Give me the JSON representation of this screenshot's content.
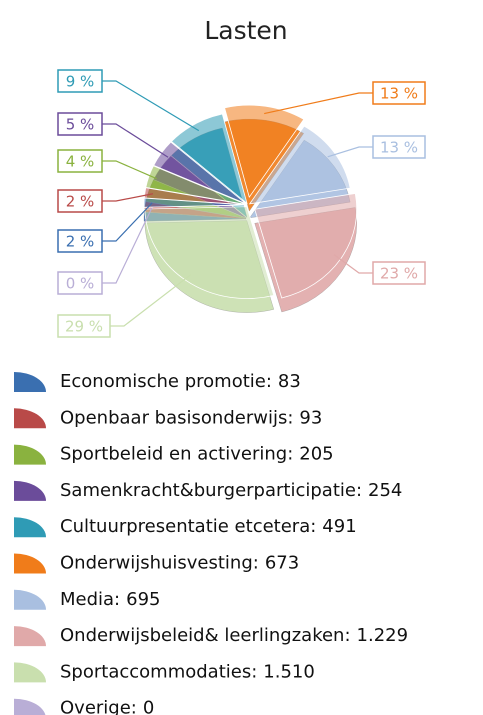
{
  "chart_data": {
    "type": "pie",
    "title": "Lasten",
    "categories": [
      "Economische promotie:",
      "Openbaar basisonderwijs:",
      "Sportbeleid en activering:",
      "Samenkracht&burgerparticipatie:",
      "Cultuurpresentatie etcetera:",
      "Onderwijshuisvesting:",
      "Media:",
      "Onderwijsbeleid& leerlingzaken:",
      "Sportaccommodaties:",
      "Overige:"
    ],
    "values": [
      83,
      93,
      205,
      254,
      491,
      673,
      695,
      1229,
      1510,
      0
    ],
    "value_labels": [
      "83",
      "93",
      "205",
      "254",
      "491",
      "673",
      "695",
      "1.229",
      "1.510",
      "0"
    ],
    "percentages": [
      2,
      2,
      4,
      5,
      9,
      13,
      13,
      23,
      29,
      0
    ],
    "percentage_labels": [
      "2 %",
      "2 %",
      "4 %",
      "5 %",
      "9 %",
      "13 %",
      "13 %",
      "23 %",
      "29 %",
      "0 %"
    ],
    "colors": [
      "#3a6fb0",
      "#b94a48",
      "#8ab23f",
      "#6b4c9a",
      "#2f9bb5",
      "#f07c1a",
      "#a9bfe0",
      "#e0a9a9",
      "#c9dfae",
      "#b9aed6"
    ]
  }
}
